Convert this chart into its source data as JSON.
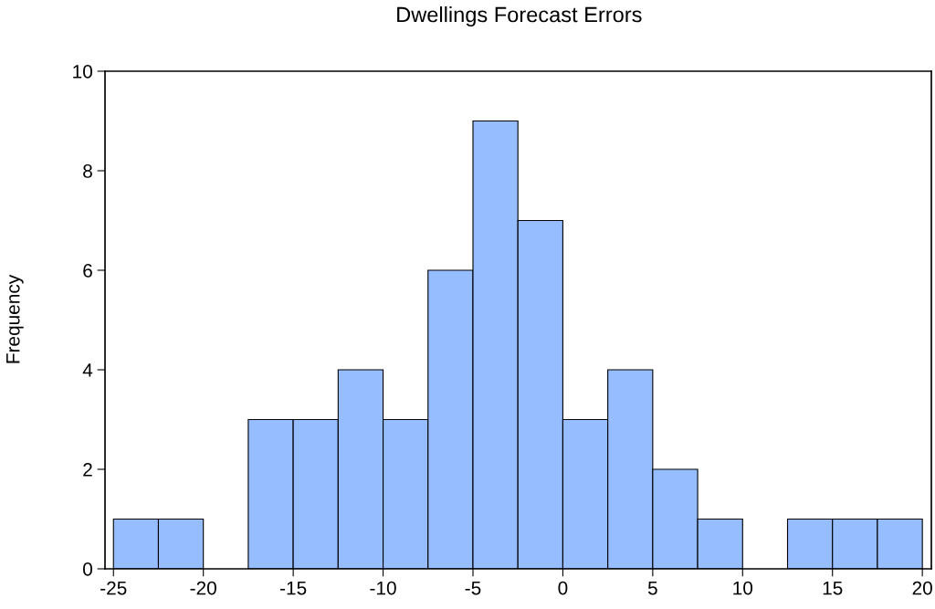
{
  "chart_data": {
    "type": "histogram",
    "title": "Dwellings Forecast Errors",
    "ylabel": "Frequency",
    "bins": [
      -25,
      -22.5,
      -20,
      -17.5,
      -15,
      -12.5,
      -10,
      -7.5,
      -5,
      -2.5,
      0,
      2.5,
      5,
      7.5,
      10,
      12.5,
      15,
      17.5,
      20
    ],
    "values": [
      1,
      1,
      0,
      3,
      3,
      4,
      3,
      6,
      9,
      7,
      3,
      4,
      2,
      1,
      0,
      1,
      1,
      1
    ],
    "color": "#96bdff",
    "xlim": [
      -25.47,
      20.5
    ],
    "xticks": [
      -25,
      -20,
      -15,
      -10,
      -5,
      0,
      5,
      10,
      15,
      20
    ],
    "ylim": [
      0,
      10
    ],
    "yticks": [
      0,
      2,
      4,
      6,
      8,
      10
    ],
    "grid": false
  }
}
